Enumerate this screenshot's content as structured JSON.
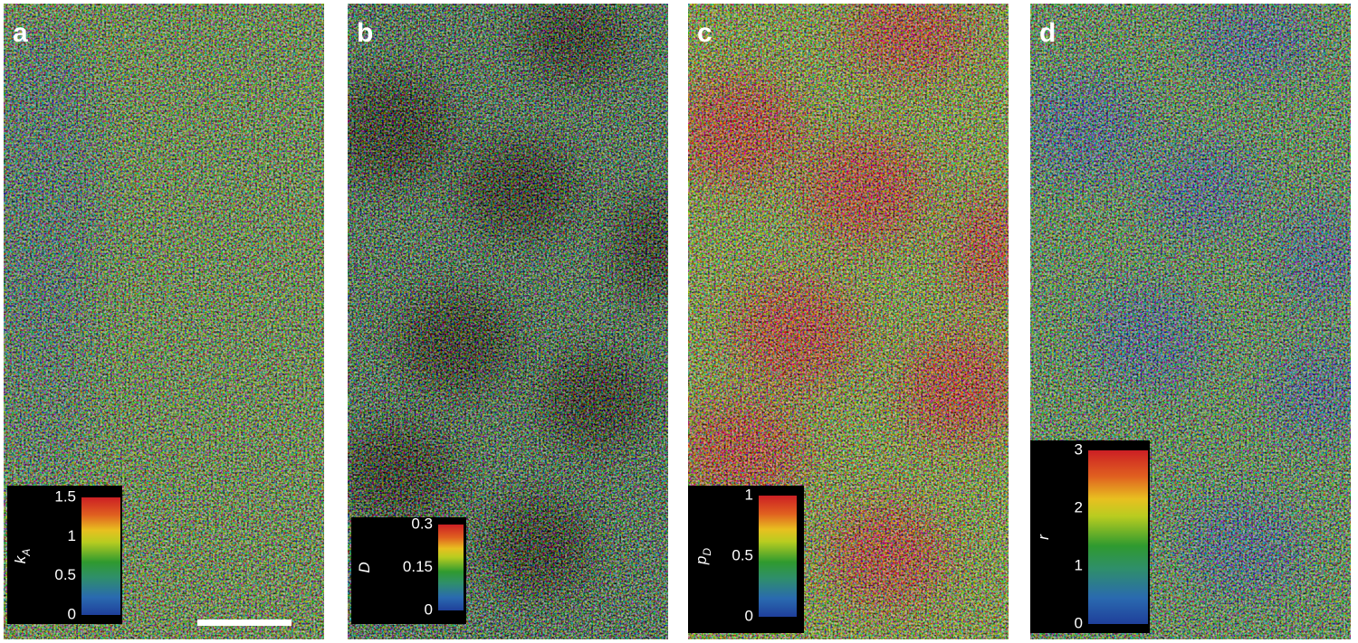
{
  "panels": [
    {
      "label": "a",
      "colorbar": {
        "axis_label": "k",
        "axis_sub": "A",
        "ticks": [
          "0",
          "0.5",
          "1",
          "1.5"
        ]
      }
    },
    {
      "label": "b",
      "colorbar": {
        "axis_label": "D",
        "ticks": [
          "0",
          "0.15",
          "0.3"
        ]
      }
    },
    {
      "label": "c",
      "colorbar": {
        "axis_label": "p",
        "axis_sub": "D",
        "ticks": [
          "0",
          "0.5",
          "1"
        ]
      }
    },
    {
      "label": "d",
      "colorbar": {
        "axis_label": "r",
        "ticks": [
          "0",
          "1",
          "2",
          "3"
        ]
      }
    }
  ]
}
